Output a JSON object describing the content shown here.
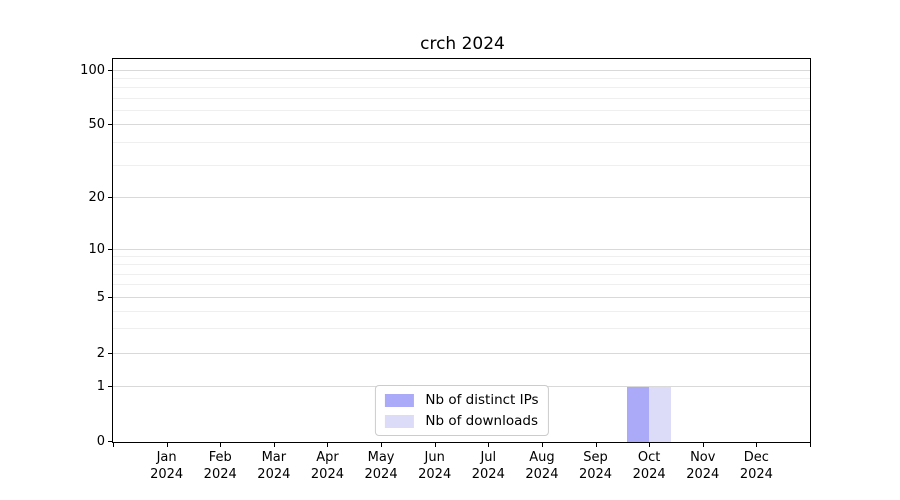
{
  "chart_data": {
    "type": "bar",
    "title": "crch 2024",
    "xlabel": "",
    "ylabel": "",
    "categories": [
      "Jan",
      "Feb",
      "Mar",
      "Apr",
      "May",
      "Jun",
      "Jul",
      "Aug",
      "Sep",
      "Oct",
      "Nov",
      "Dec"
    ],
    "year_label": "2024",
    "series": [
      {
        "name": "Nb of distinct IPs",
        "color": "#aaaaf8",
        "values": [
          0,
          0,
          0,
          0,
          0,
          0,
          0,
          0,
          0,
          1,
          0,
          0
        ]
      },
      {
        "name": "Nb of downloads",
        "color": "#dcdcf8",
        "values": [
          0,
          0,
          0,
          0,
          0,
          0,
          0,
          0,
          0,
          1,
          0,
          0
        ]
      }
    ],
    "y_ticks": [
      0,
      1,
      2,
      5,
      10,
      20,
      50,
      100
    ],
    "y_minor_ticks": [
      3,
      4,
      6,
      7,
      8,
      9,
      30,
      40,
      60,
      70,
      80,
      90
    ],
    "ylim": [
      0,
      115
    ],
    "y_scale": "quasi-log",
    "grid": "horizontal major+minor",
    "legend_position": "lower center",
    "colors": {
      "grid_major": "#d9d9d9",
      "grid_minor": "#efefef",
      "axis": "#000000"
    }
  }
}
